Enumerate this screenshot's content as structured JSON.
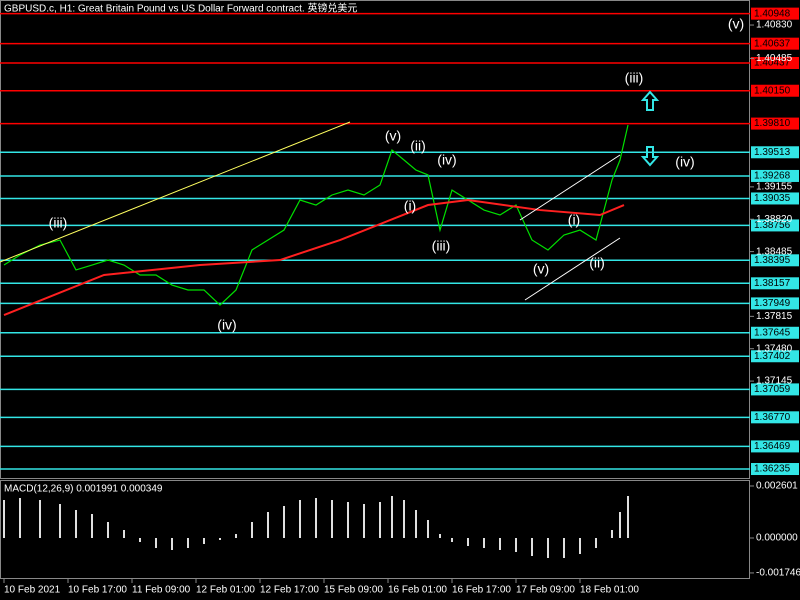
{
  "chart_data": [
    {
      "type": "line",
      "title": "GBPUSD.c, H1:  Great Britain Pound vs US Dollar Forward contract. 英镑兑美元",
      "xlim": [
        -1,
        186.5
      ],
      "ylim": [
        1.36142,
        1.41089
      ],
      "xticks": [
        {
          "value": 0,
          "label": "10 Feb 2021"
        },
        {
          "value": 16,
          "label": "10 Feb 17:00"
        },
        {
          "value": 32,
          "label": "11 Feb 09:00"
        },
        {
          "value": 48,
          "label": "12 Feb 01:00"
        },
        {
          "value": 64,
          "label": "12 Feb 17:00"
        },
        {
          "value": 80,
          "label": "15 Feb 09:00"
        },
        {
          "value": 96,
          "label": "16 Feb 01:00"
        },
        {
          "value": 112,
          "label": "16 Feb 17:00"
        },
        {
          "value": 128,
          "label": "17 Feb 09:00"
        },
        {
          "value": 144,
          "label": "18 Feb 01:00"
        }
      ],
      "yticks": [
        {
          "value": 1.4083,
          "label": "1.40830"
        },
        {
          "value": 1.40485,
          "label": "1.40485"
        },
        {
          "value": 1.39155,
          "label": "1.39155"
        },
        {
          "value": 1.3882,
          "label": "1.38820"
        },
        {
          "value": 1.38485,
          "label": "1.38485"
        },
        {
          "value": 1.37815,
          "label": "1.37815"
        },
        {
          "value": 1.3748,
          "label": "1.37480"
        },
        {
          "value": 1.37145,
          "label": "1.37145"
        }
      ],
      "levels": [
        {
          "value": 1.40948,
          "label": "1.40948",
          "color": "#ff0000"
        },
        {
          "value": 1.40637,
          "label": "1.40637",
          "color": "#ff0000"
        },
        {
          "value": 1.40437,
          "label": "1.40437",
          "color": "#ff0000"
        },
        {
          "value": 1.4015,
          "label": "1.40150",
          "color": "#ff0000"
        },
        {
          "value": 1.3981,
          "label": "1.39810",
          "color": "#ff0000"
        },
        {
          "value": 1.39513,
          "label": "1.39513",
          "color": "#33e6e6"
        },
        {
          "value": 1.39268,
          "label": "1.39268",
          "color": "#33e6e6"
        },
        {
          "value": 1.39035,
          "label": "1.39035",
          "color": "#33e6e6"
        },
        {
          "value": 1.38756,
          "label": "1.38756",
          "color": "#33e6e6"
        },
        {
          "value": 1.38395,
          "label": "1.38395",
          "color": "#33e6e6"
        },
        {
          "value": 1.38157,
          "label": "1.38157",
          "color": "#33e6e6"
        },
        {
          "value": 1.37949,
          "label": "1.37949",
          "color": "#33e6e6"
        },
        {
          "value": 1.37645,
          "label": "1.37645",
          "color": "#33e6e6"
        },
        {
          "value": 1.37402,
          "label": "1.37402",
          "color": "#33e6e6"
        },
        {
          "value": 1.37059,
          "label": "1.37059",
          "color": "#33e6e6"
        },
        {
          "value": 1.3677,
          "label": "1.36770",
          "color": "#33e6e6"
        },
        {
          "value": 1.36469,
          "label": "1.36469",
          "color": "#33e6e6"
        },
        {
          "value": 1.36235,
          "label": "1.36235",
          "color": "#33e6e6"
        }
      ],
      "series": [
        {
          "color": "#00e000",
          "x": [
            0,
            4,
            9,
            14,
            18,
            22,
            26,
            30,
            34,
            38,
            42,
            46,
            50,
            54,
            58,
            62,
            66,
            70,
            74,
            78,
            82,
            86,
            90,
            94,
            97,
            100,
            103,
            106,
            109,
            112,
            116,
            120,
            124,
            128,
            132,
            136,
            140,
            144,
            148,
            152,
            154,
            156
          ],
          "values": [
            1.38346,
            1.3845,
            1.38553,
            1.38605,
            1.38295,
            1.38346,
            1.38398,
            1.38346,
            1.38243,
            1.38243,
            1.38139,
            1.38088,
            1.38088,
            1.37932,
            1.38088,
            1.38502,
            1.38605,
            1.38708,
            1.39019,
            1.38967,
            1.39071,
            1.39122,
            1.39071,
            1.39174,
            1.39536,
            1.39433,
            1.39329,
            1.39278,
            1.38708,
            1.39122,
            1.39019,
            1.38915,
            1.38864,
            1.38967,
            1.38605,
            1.38502,
            1.38657,
            1.38708,
            1.38605,
            1.39226,
            1.39433,
            1.39795
          ]
        },
        {
          "color": "#ff2020",
          "x": [
            0,
            25,
            49,
            69,
            84,
            106,
            116,
            134,
            149,
            155
          ],
          "values": [
            1.37828,
            1.38243,
            1.38346,
            1.38398,
            1.38605,
            1.38967,
            1.39019,
            1.38915,
            1.38864,
            1.38967
          ]
        }
      ],
      "annotations": [
        "(iii)",
        "(iv)",
        "(v)",
        "(ii)",
        "(iv)",
        "(i)",
        "(iii)",
        "(v)",
        "(i)",
        "(ii)",
        "(iii)",
        "(iv)",
        "(v)"
      ]
    },
    {
      "type": "bar",
      "title": "MACD(12,26,9) 0.001991 0.000349",
      "ylim": [
        -0.002,
        0.0029
      ],
      "yticks": [
        {
          "value": 0.002601,
          "label": "0.002601"
        },
        {
          "value": 0,
          "label": "0.000000"
        },
        {
          "value": -0.001746,
          "label": "-0.001746"
        }
      ],
      "x": [
        0,
        4,
        9,
        14,
        18,
        22,
        26,
        30,
        34,
        38,
        42,
        46,
        50,
        54,
        58,
        62,
        66,
        70,
        74,
        78,
        82,
        86,
        90,
        94,
        97,
        100,
        103,
        106,
        109,
        112,
        116,
        120,
        124,
        128,
        132,
        136,
        140,
        144,
        148,
        152,
        154,
        156
      ],
      "values": [
        0.0019,
        0.002,
        0.0019,
        0.0017,
        0.0014,
        0.0012,
        0.0008,
        0.0004,
        -0.0002,
        -0.0005,
        -0.0006,
        -0.0005,
        -0.0003,
        -0.0001,
        0.0002,
        0.0008,
        0.0013,
        0.0016,
        0.0019,
        0.002,
        0.0019,
        0.0018,
        0.0017,
        0.0018,
        0.0021,
        0.0019,
        0.0014,
        0.0009,
        0.0002,
        -0.0002,
        -0.0004,
        -0.0005,
        -0.0006,
        -0.0007,
        -0.0009,
        -0.001,
        -0.001,
        -0.0008,
        -0.0005,
        0.0004,
        0.0013,
        0.0021
      ],
      "color": "#e0e0e0"
    }
  ]
}
